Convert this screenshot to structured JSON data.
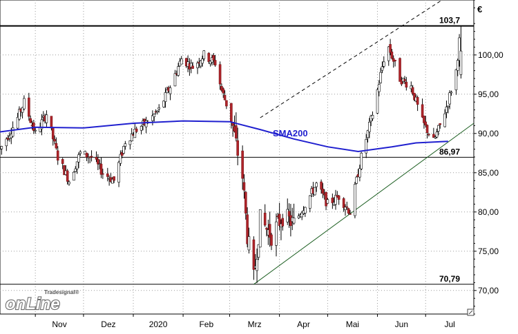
{
  "chart_data": {
    "type": "candlestick",
    "currency_symbol": "€",
    "ylim": [
      67,
      107
    ],
    "y_ticks": [
      "100,00",
      "95,00",
      "90,00",
      "85,00",
      "80,00",
      "75,00",
      "70,00"
    ],
    "y_tick_values": [
      100,
      95,
      90,
      85,
      80,
      75,
      70
    ],
    "x_labels": [
      "Nov",
      "Dez",
      "2020",
      "Feb",
      "Mrz",
      "Apr",
      "Mai",
      "Jun",
      "Jul"
    ],
    "x_label_dates": [
      "2019-11-01",
      "2019-12-01",
      "2020-01-01",
      "2020-02-01",
      "2020-03-01",
      "2020-04-01",
      "2020-05-01",
      "2020-06-01",
      "2020-07-01"
    ],
    "x_range": [
      "2019-10-10",
      "2020-07-31"
    ],
    "levels": [
      {
        "label": "103,7",
        "value": 103.7
      },
      {
        "label": "86,97",
        "value": 86.97
      },
      {
        "label": "70,79",
        "value": 70.79
      }
    ],
    "sma_label": "SMA200",
    "sma200": [
      [
        "2019-10-10",
        90.2
      ],
      [
        "2019-11-01",
        90.8
      ],
      [
        "2019-12-01",
        90.7
      ],
      [
        "2020-01-01",
        91.3
      ],
      [
        "2020-02-01",
        91.6
      ],
      [
        "2020-03-01",
        91.5
      ],
      [
        "2020-03-20",
        90.5
      ],
      [
        "2020-04-10",
        89.3
      ],
      [
        "2020-05-01",
        88.3
      ],
      [
        "2020-05-20",
        87.7
      ],
      [
        "2020-06-10",
        88.3
      ],
      [
        "2020-06-25",
        88.8
      ],
      [
        "2020-07-15",
        89.0
      ]
    ],
    "trendlines": [
      {
        "style": "solid",
        "from": [
          "2020-03-16",
          70.79
        ],
        "to": [
          "2020-07-31",
          91.3
        ]
      },
      {
        "style": "dashed",
        "from": [
          "2020-03-20",
          92.0
        ],
        "to": [
          "2020-07-15",
          107.5
        ]
      }
    ],
    "price_path": [
      [
        "2019-10-10",
        88.0
      ],
      [
        "2019-10-20",
        91.5
      ],
      [
        "2019-10-25",
        94.0
      ],
      [
        "2019-11-01",
        90.0
      ],
      [
        "2019-11-08",
        92.5
      ],
      [
        "2019-11-15",
        87.0
      ],
      [
        "2019-11-22",
        84.0
      ],
      [
        "2019-11-29",
        87.5
      ],
      [
        "2019-12-06",
        87.0
      ],
      [
        "2019-12-13",
        85.0
      ],
      [
        "2019-12-20",
        84.0
      ],
      [
        "2019-12-27",
        89.0
      ],
      [
        "2020-01-03",
        90.5
      ],
      [
        "2020-01-10",
        91.5
      ],
      [
        "2020-01-17",
        93.0
      ],
      [
        "2020-01-24",
        96.0
      ],
      [
        "2020-01-31",
        99.5
      ],
      [
        "2020-02-07",
        98.5
      ],
      [
        "2020-02-14",
        100.0
      ],
      [
        "2020-02-21",
        99.0
      ],
      [
        "2020-02-25",
        95.5
      ],
      [
        "2020-03-02",
        92.0
      ],
      [
        "2020-03-06",
        87.5
      ],
      [
        "2020-03-09",
        84.5
      ],
      [
        "2020-03-12",
        77.0
      ],
      [
        "2020-03-16",
        71.5
      ],
      [
        "2020-03-20",
        79.0
      ],
      [
        "2020-03-27",
        77.0
      ],
      [
        "2020-04-03",
        79.5
      ],
      [
        "2020-04-10",
        78.5
      ],
      [
        "2020-04-17",
        81.0
      ],
      [
        "2020-04-24",
        83.5
      ],
      [
        "2020-05-01",
        81.0
      ],
      [
        "2020-05-08",
        82.0
      ],
      [
        "2020-05-15",
        80.0
      ],
      [
        "2020-05-22",
        87.0
      ],
      [
        "2020-05-29",
        92.5
      ],
      [
        "2020-06-05",
        99.5
      ],
      [
        "2020-06-08",
        101.0
      ],
      [
        "2020-06-15",
        97.0
      ],
      [
        "2020-06-22",
        96.0
      ],
      [
        "2020-06-29",
        91.5
      ],
      [
        "2020-07-06",
        89.0
      ],
      [
        "2020-07-10",
        91.0
      ],
      [
        "2020-07-15",
        94.0
      ],
      [
        "2020-07-20",
        98.0
      ],
      [
        "2020-07-23",
        103.7
      ]
    ]
  },
  "logo": {
    "small_text": "Tradesignal®",
    "main_text": "onLine"
  }
}
